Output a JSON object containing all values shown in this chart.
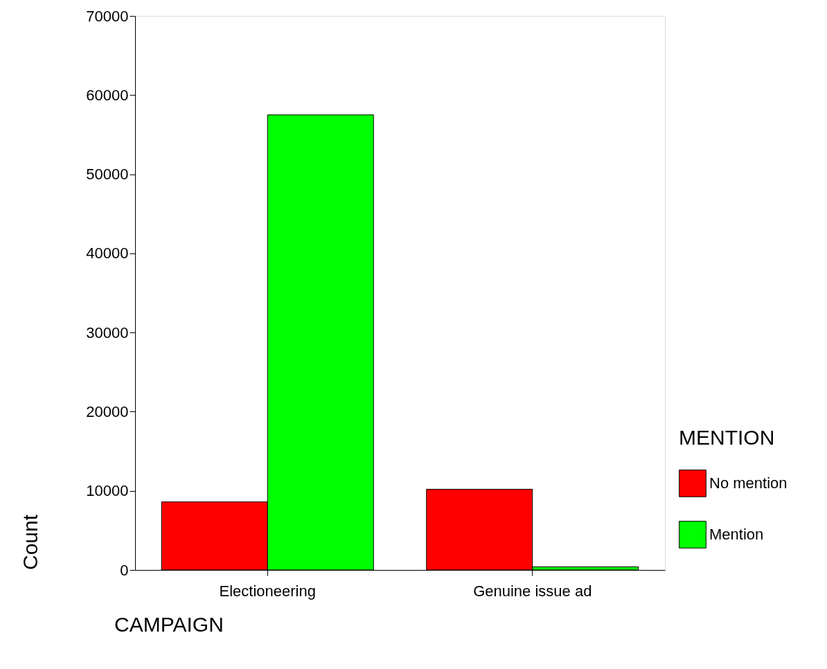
{
  "chart_data": {
    "type": "bar",
    "xlabel": "CAMPAIGN",
    "ylabel": "Count",
    "legend_title": "MENTION",
    "categories": [
      "Electioneering",
      "Genuine issue ad"
    ],
    "series": [
      {
        "name": "No mention",
        "color": "#ff0000",
        "values": [
          8600,
          10200
        ]
      },
      {
        "name": "Mention",
        "color": "#00ff00",
        "values": [
          57500,
          400
        ]
      }
    ],
    "ylim": [
      0,
      70000
    ],
    "yticks": [
      0,
      10000,
      20000,
      30000,
      40000,
      50000,
      60000,
      70000
    ],
    "grid": false,
    "legend": "right"
  }
}
